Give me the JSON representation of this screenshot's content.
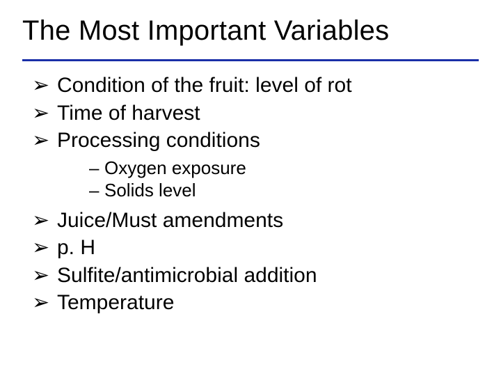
{
  "slide": {
    "title": "The Most Important Variables",
    "title_fontsize": 40,
    "rule_color": "#1a2fa8",
    "rule_thickness": 3,
    "background_color": "#ffffff",
    "text_color": "#000000",
    "font_family": "Arial",
    "bullets_level1_fontsize": 30,
    "bullets_level2_fontsize": 26,
    "bullet_level1_symbol": "➢",
    "bullet_level2_symbol": "–",
    "items": [
      {
        "label": "Condition of the fruit: level of rot"
      },
      {
        "label": "Time of harvest"
      },
      {
        "label": "Processing conditions",
        "children": [
          {
            "label": "Oxygen exposure"
          },
          {
            "label": "Solids level"
          }
        ]
      },
      {
        "label": "Juice/Must amendments"
      },
      {
        "label": "p. H"
      },
      {
        "label": "Sulfite/antimicrobial addition"
      },
      {
        "label": "Temperature"
      }
    ]
  }
}
